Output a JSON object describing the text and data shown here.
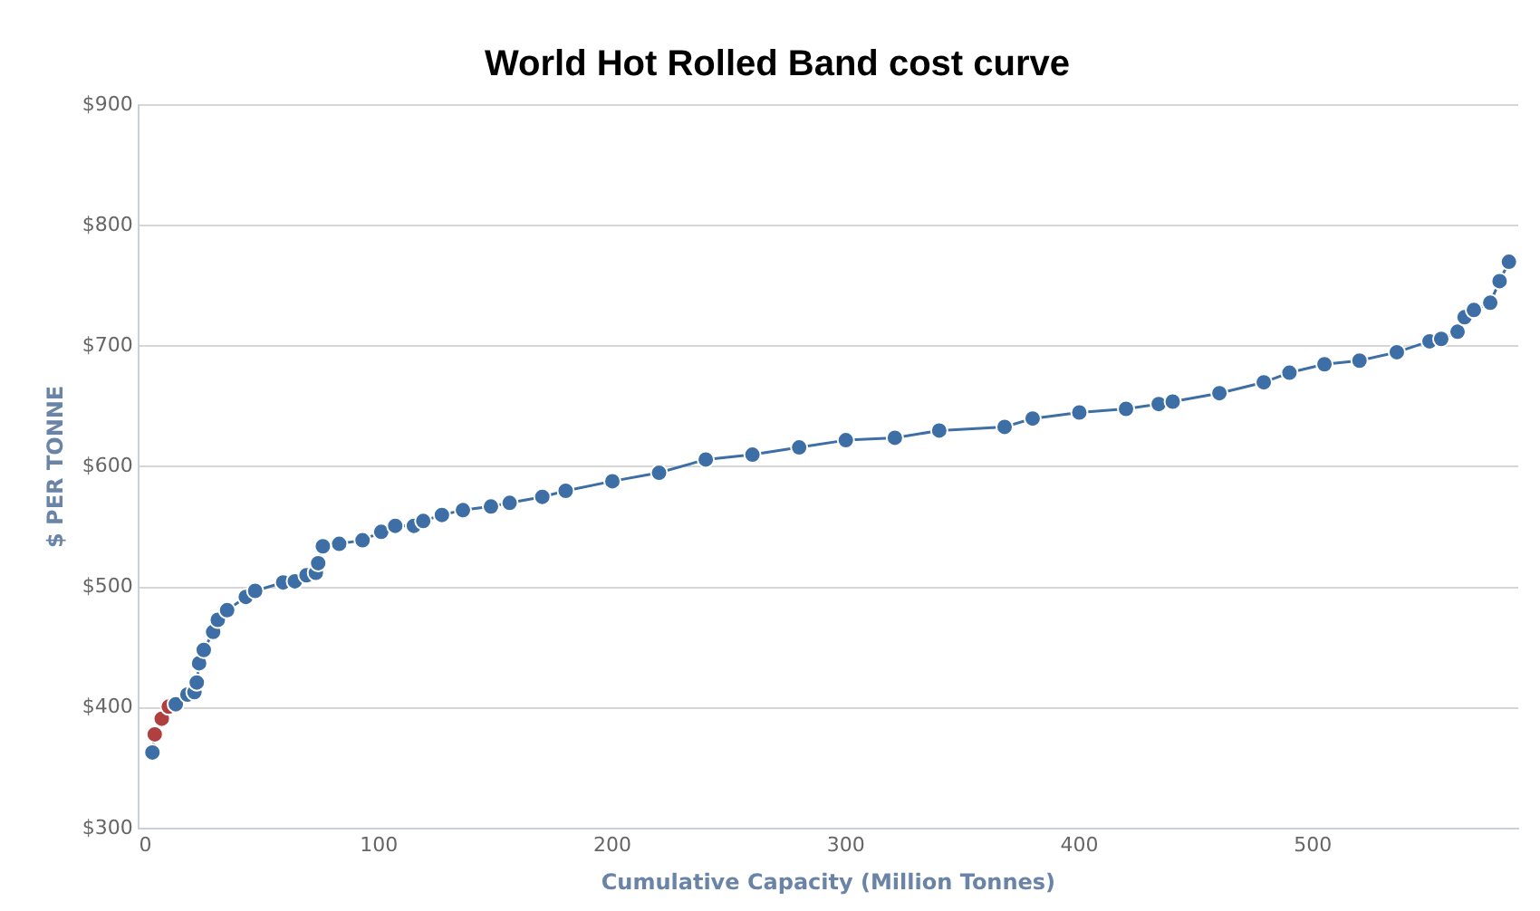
{
  "chart_data": {
    "type": "line",
    "title": "World Hot Rolled Band cost curve",
    "xlabel": "Cumulative Capacity (Million Tonnes)",
    "ylabel": "$ PER TONNE",
    "xlim": [
      -3,
      588
    ],
    "xticks": [
      0,
      100,
      200,
      300,
      400,
      500
    ],
    "ylim": [
      300,
      900
    ],
    "yticks": [
      {
        "value": 300,
        "label": "$300"
      },
      {
        "value": 400,
        "label": "$400"
      },
      {
        "value": 500,
        "label": "$500"
      },
      {
        "value": 600,
        "label": "$600"
      },
      {
        "value": 700,
        "label": "$700"
      },
      {
        "value": 800,
        "label": "$800"
      },
      {
        "value": 900,
        "label": "$900"
      }
    ],
    "grid": "y",
    "legend": false,
    "marker": "circle",
    "series": [
      {
        "color": "#3d6ea5",
        "colors": [
          "#3d6ea5",
          "#b04040",
          "#b04040",
          "#b04040",
          "#3d6ea5",
          "#3d6ea5",
          "#3d6ea5",
          "#3d6ea5",
          "#3d6ea5",
          "#3d6ea5",
          "#3d6ea5",
          "#3d6ea5",
          "#3d6ea5",
          "#3d6ea5",
          "#3d6ea5",
          "#3d6ea5",
          "#3d6ea5",
          "#3d6ea5",
          "#3d6ea5",
          "#3d6ea5",
          "#3d6ea5",
          "#3d6ea5",
          "#3d6ea5",
          "#3d6ea5",
          "#3d6ea5",
          "#3d6ea5",
          "#3d6ea5",
          "#3d6ea5",
          "#3d6ea5",
          "#3d6ea5",
          "#3d6ea5",
          "#3d6ea5",
          "#3d6ea5",
          "#3d6ea5",
          "#3d6ea5",
          "#3d6ea5",
          "#3d6ea5",
          "#3d6ea5",
          "#3d6ea5",
          "#3d6ea5",
          "#3d6ea5",
          "#3d6ea5",
          "#3d6ea5",
          "#3d6ea5",
          "#3d6ea5",
          "#3d6ea5",
          "#3d6ea5",
          "#3d6ea5",
          "#3d6ea5",
          "#3d6ea5",
          "#3d6ea5",
          "#3d6ea5",
          "#3d6ea5",
          "#3d6ea5",
          "#3d6ea5",
          "#3d6ea5",
          "#3d6ea5",
          "#3d6ea5",
          "#3d6ea5",
          "#3d6ea5",
          "#3d6ea5"
        ],
        "x": [
          3,
          4,
          7,
          10,
          13,
          18,
          21,
          22,
          23,
          25,
          29,
          31,
          35,
          43,
          47,
          59,
          64,
          69,
          73,
          74,
          76,
          83,
          93,
          101,
          107,
          115,
          119,
          127,
          136,
          148,
          156,
          170,
          180,
          200,
          220,
          240,
          260,
          280,
          300,
          321,
          340,
          368,
          380,
          400,
          420,
          434,
          440,
          460,
          479,
          490,
          505,
          520,
          536,
          550,
          555,
          562,
          565,
          569,
          576,
          580,
          584
        ],
        "values": [
          363,
          378,
          391,
          401,
          403,
          411,
          413,
          421,
          437,
          448,
          463,
          473,
          481,
          492,
          497,
          504,
          505,
          510,
          512,
          520,
          534,
          536,
          539,
          546,
          551,
          551,
          555,
          560,
          564,
          567,
          570,
          575,
          580,
          588,
          595,
          606,
          610,
          616,
          622,
          624,
          630,
          633,
          640,
          645,
          648,
          652,
          654,
          661,
          670,
          678,
          685,
          688,
          695,
          704,
          706,
          712,
          724,
          730,
          736,
          754,
          770
        ]
      }
    ]
  }
}
